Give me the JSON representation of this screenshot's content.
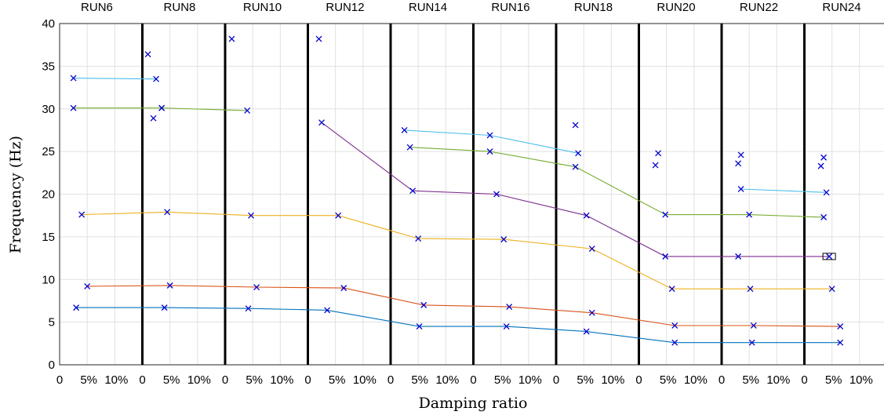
{
  "chart_data": {
    "type": "line",
    "xlabel": "Damping ratio",
    "ylabel": "Frequency (Hz)",
    "ylim": [
      0,
      40
    ],
    "yticks": [
      0,
      5,
      10,
      15,
      20,
      25,
      30,
      35,
      40
    ],
    "panel_xlim": [
      0,
      0.15
    ],
    "panel_xtick_labels": [
      "0",
      "5%",
      "10%"
    ],
    "grid": true,
    "runs": [
      "RUN6",
      "RUN8",
      "RUN10",
      "RUN12",
      "RUN14",
      "RUN16",
      "RUN18",
      "RUN20",
      "RUN22",
      "RUN24"
    ],
    "series": [
      {
        "name": "",
        "color": "#0072BD",
        "points": [
          [
            0.03,
            6.7
          ],
          [
            0.04,
            6.7
          ],
          [
            0.042,
            6.6
          ],
          [
            0.035,
            6.4
          ],
          [
            0.052,
            4.5
          ],
          [
            0.06,
            4.5
          ],
          [
            0.055,
            3.9
          ],
          [
            0.065,
            2.6
          ],
          [
            0.055,
            2.6
          ],
          [
            0.065,
            2.6
          ]
        ]
      },
      {
        "name": "",
        "color": "#D95319",
        "points": [
          [
            0.05,
            9.2
          ],
          [
            0.05,
            9.3
          ],
          [
            0.057,
            9.1
          ],
          [
            0.065,
            9.0
          ],
          [
            0.06,
            7.0
          ],
          [
            0.065,
            6.8
          ],
          [
            0.065,
            6.1
          ],
          [
            0.065,
            4.6
          ],
          [
            0.058,
            4.6
          ],
          [
            0.065,
            4.5
          ]
        ]
      },
      {
        "name": "",
        "color": "#EDB120",
        "points": [
          [
            0.04,
            17.6
          ],
          [
            0.045,
            17.9
          ],
          [
            0.047,
            17.5
          ],
          [
            0.055,
            17.5
          ],
          [
            0.05,
            14.8
          ],
          [
            0.055,
            14.7
          ],
          [
            0.065,
            13.6
          ],
          [
            0.06,
            8.9
          ],
          [
            0.052,
            8.9
          ],
          [
            0.05,
            8.9
          ]
        ]
      },
      {
        "name": "",
        "color": "#7E2F8E",
        "points": [
          [
            null,
            null
          ],
          [
            0.02,
            28.9
          ],
          [
            null,
            null
          ],
          [
            0.025,
            28.4
          ],
          [
            0.04,
            20.4
          ],
          [
            0.042,
            20.0
          ],
          [
            0.055,
            17.5
          ],
          [
            0.048,
            12.7
          ],
          [
            0.03,
            12.7
          ],
          [
            0.045,
            12.7
          ]
        ]
      },
      {
        "name": "",
        "color": "#77AC30",
        "points": [
          [
            0.025,
            30.1
          ],
          [
            0.035,
            30.1
          ],
          [
            0.04,
            29.8
          ],
          [
            null,
            null
          ],
          [
            0.035,
            25.5
          ],
          [
            0.03,
            25.0
          ],
          [
            0.035,
            23.2
          ],
          [
            0.048,
            17.6
          ],
          [
            0.05,
            17.6
          ],
          [
            0.035,
            17.3
          ]
        ]
      },
      {
        "name": "",
        "color": "#4DBEEE",
        "points": [
          [
            0.025,
            33.6
          ],
          [
            0.025,
            33.5
          ],
          [
            null,
            null
          ],
          [
            null,
            null
          ],
          [
            0.025,
            27.5
          ],
          [
            0.03,
            26.9
          ],
          [
            0.04,
            24.8
          ],
          [
            null,
            null
          ],
          [
            0.035,
            20.6
          ],
          [
            0.04,
            20.2
          ]
        ]
      }
    ],
    "extra_markers": [
      {
        "run": "RUN8",
        "x": 0.01,
        "y": 36.4
      },
      {
        "run": "RUN8",
        "x": 0.035,
        "y": 30.1
      },
      {
        "run": "RUN10",
        "x": 0.012,
        "y": 38.2
      },
      {
        "run": "RUN12",
        "x": 0.02,
        "y": 38.2
      },
      {
        "run": "RUN18",
        "x": 0.035,
        "y": 28.1
      },
      {
        "run": "RUN20",
        "x": 0.035,
        "y": 24.8
      },
      {
        "run": "RUN20",
        "x": 0.03,
        "y": 23.4
      },
      {
        "run": "RUN22",
        "x": 0.035,
        "y": 24.6
      },
      {
        "run": "RUN22",
        "x": 0.03,
        "y": 23.6
      },
      {
        "run": "RUN24",
        "x": 0.035,
        "y": 24.3
      },
      {
        "run": "RUN24",
        "x": 0.03,
        "y": 23.3
      }
    ],
    "highlight_box": {
      "run": "RUN24",
      "y": 12.7
    }
  }
}
